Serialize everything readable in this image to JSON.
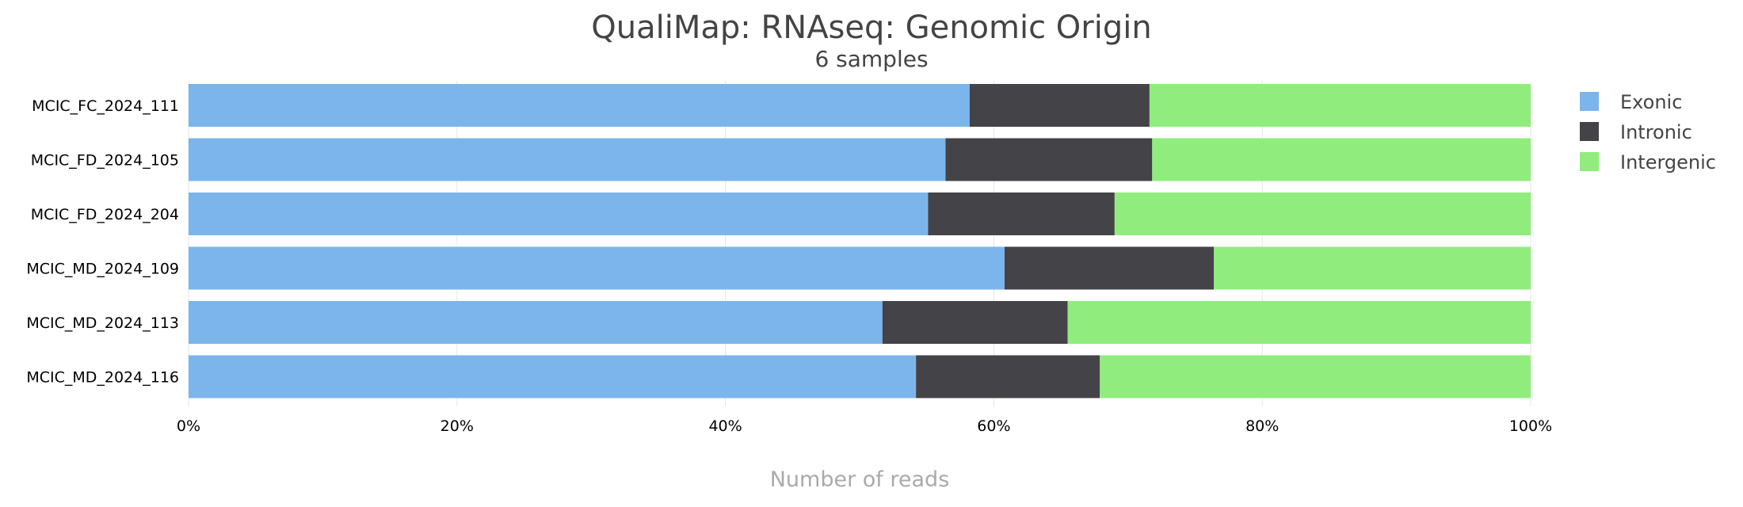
{
  "chart_data": {
    "type": "bar",
    "orientation": "horizontal",
    "stacked": true,
    "percent": true,
    "title": "QualiMap: RNAseq: Genomic Origin",
    "subtitle": "6 samples",
    "xlabel": "Number of reads",
    "ylabel": "",
    "xlim": [
      0,
      100
    ],
    "xticks": [
      "0%",
      "20%",
      "40%",
      "60%",
      "80%",
      "100%"
    ],
    "grid": true,
    "legend_position": "right",
    "categories": [
      "MCIC_FC_2024_111",
      "MCIC_FD_2024_105",
      "MCIC_FD_2024_204",
      "MCIC_MD_2024_109",
      "MCIC_MD_2024_113",
      "MCIC_MD_2024_116"
    ],
    "series": [
      {
        "name": "Exonic",
        "color": "#7cb5ec",
        "values": [
          58.2,
          56.4,
          55.1,
          60.8,
          51.7,
          54.2
        ]
      },
      {
        "name": "Intronic",
        "color": "#434348",
        "values": [
          13.4,
          15.4,
          13.9,
          15.6,
          13.8,
          13.7
        ]
      },
      {
        "name": "Intergenic",
        "color": "#90ed7d",
        "values": [
          28.4,
          28.2,
          31.0,
          23.6,
          34.5,
          32.1
        ]
      }
    ]
  }
}
